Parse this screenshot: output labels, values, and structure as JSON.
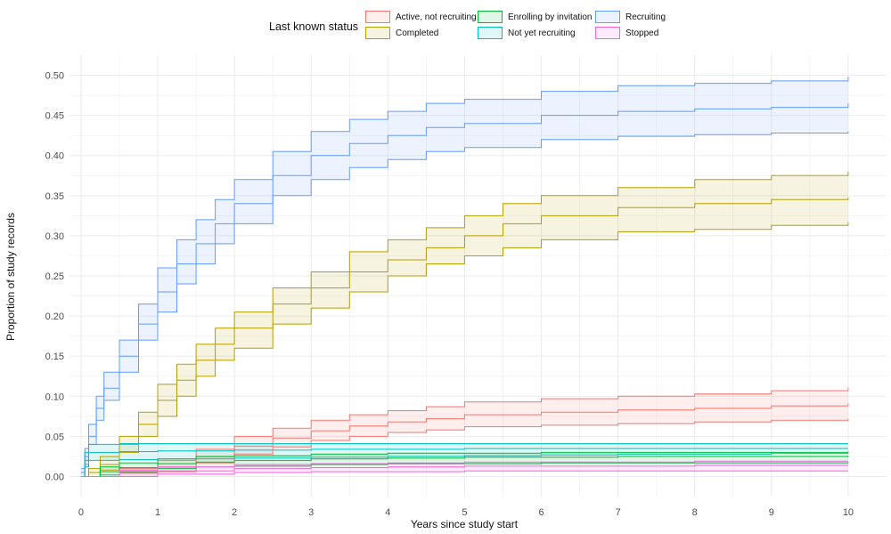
{
  "chart_data": {
    "type": "area",
    "title": "",
    "xlabel": "Years since study start",
    "ylabel": "Proportion of study records",
    "xlim": [
      -0.15,
      10.5
    ],
    "ylim": [
      -0.025,
      0.525
    ],
    "xticks": [
      "0",
      "1",
      "2",
      "3",
      "4",
      "5",
      "6",
      "7",
      "8",
      "9",
      "10"
    ],
    "yticks": [
      "0.00",
      "0.05",
      "0.10",
      "0.15",
      "0.20",
      "0.25",
      "0.30",
      "0.35",
      "0.40",
      "0.45",
      "0.50"
    ],
    "grid": true,
    "legend": {
      "title": "Last known status",
      "position": "top",
      "entries": [
        {
          "label": "Active, not recruiting",
          "color": "#F8766D"
        },
        {
          "label": "Completed",
          "color": "#B79F00"
        },
        {
          "label": "Enrolling by invitation",
          "color": "#00BA38"
        },
        {
          "label": "Not yet recruiting",
          "color": "#00BFC4"
        },
        {
          "label": "Recruiting",
          "color": "#619CFF"
        },
        {
          "label": "Stopped",
          "color": "#F564E3"
        }
      ]
    },
    "series": [
      {
        "name": "Recruiting",
        "color": "#619CFF",
        "x": [
          0,
          0.05,
          0.1,
          0.2,
          0.3,
          0.5,
          0.75,
          1,
          1.25,
          1.5,
          1.75,
          2,
          2.5,
          3,
          3.5,
          4,
          4.5,
          5,
          6,
          7,
          8,
          9,
          10
        ],
        "mid": [
          0.005,
          0.025,
          0.05,
          0.085,
          0.11,
          0.15,
          0.19,
          0.23,
          0.265,
          0.29,
          0.315,
          0.34,
          0.375,
          0.4,
          0.415,
          0.425,
          0.435,
          0.44,
          0.45,
          0.455,
          0.458,
          0.46,
          0.465
        ],
        "lower": [
          0.0,
          0.015,
          0.04,
          0.07,
          0.095,
          0.13,
          0.17,
          0.205,
          0.24,
          0.265,
          0.29,
          0.315,
          0.35,
          0.37,
          0.385,
          0.395,
          0.405,
          0.41,
          0.42,
          0.424,
          0.426,
          0.428,
          0.43
        ],
        "upper": [
          0.01,
          0.035,
          0.065,
          0.1,
          0.13,
          0.17,
          0.215,
          0.26,
          0.295,
          0.32,
          0.345,
          0.37,
          0.405,
          0.43,
          0.445,
          0.455,
          0.465,
          0.47,
          0.48,
          0.487,
          0.49,
          0.493,
          0.498
        ]
      },
      {
        "name": "Completed",
        "color": "#B79F00",
        "x": [
          0,
          0.1,
          0.25,
          0.5,
          0.75,
          1,
          1.25,
          1.5,
          1.75,
          2,
          2.5,
          3,
          3.5,
          4,
          4.5,
          5,
          5.5,
          6,
          7,
          8,
          9,
          10
        ],
        "mid": [
          0.0,
          0.005,
          0.015,
          0.04,
          0.065,
          0.095,
          0.12,
          0.145,
          0.165,
          0.185,
          0.215,
          0.235,
          0.255,
          0.27,
          0.285,
          0.3,
          0.315,
          0.325,
          0.335,
          0.34,
          0.345,
          0.348
        ],
        "lower": [
          0.0,
          0.0,
          0.008,
          0.03,
          0.05,
          0.075,
          0.1,
          0.125,
          0.145,
          0.16,
          0.19,
          0.21,
          0.23,
          0.25,
          0.265,
          0.275,
          0.285,
          0.295,
          0.305,
          0.308,
          0.313,
          0.317
        ],
        "upper": [
          0.0,
          0.01,
          0.025,
          0.05,
          0.08,
          0.115,
          0.14,
          0.165,
          0.185,
          0.205,
          0.235,
          0.255,
          0.28,
          0.295,
          0.31,
          0.325,
          0.34,
          0.35,
          0.36,
          0.37,
          0.375,
          0.38
        ]
      },
      {
        "name": "Active, not recruiting",
        "color": "#F8766D",
        "x": [
          0,
          0.5,
          1,
          1.5,
          2,
          2.5,
          3,
          3.5,
          4,
          4.5,
          5,
          6,
          7,
          8,
          9,
          10
        ],
        "mid": [
          0.0,
          0.005,
          0.012,
          0.025,
          0.038,
          0.048,
          0.057,
          0.063,
          0.068,
          0.072,
          0.077,
          0.08,
          0.083,
          0.085,
          0.088,
          0.091
        ],
        "lower": [
          0.0,
          0.0,
          0.006,
          0.017,
          0.028,
          0.037,
          0.045,
          0.05,
          0.055,
          0.058,
          0.062,
          0.064,
          0.066,
          0.068,
          0.07,
          0.072
        ],
        "upper": [
          0.0,
          0.01,
          0.02,
          0.034,
          0.05,
          0.06,
          0.07,
          0.077,
          0.082,
          0.087,
          0.093,
          0.097,
          0.1,
          0.103,
          0.107,
          0.111
        ]
      },
      {
        "name": "Not yet recruiting",
        "color": "#00BFC4",
        "x": [
          0,
          0.05,
          0.1,
          0.5,
          1,
          2,
          3,
          4,
          5,
          6,
          7,
          8,
          9,
          10
        ],
        "mid": [
          0.0,
          0.02,
          0.03,
          0.031,
          0.032,
          0.033,
          0.034,
          0.034,
          0.035,
          0.035,
          0.035,
          0.035,
          0.035,
          0.035
        ],
        "lower": [
          0.0,
          0.012,
          0.02,
          0.021,
          0.022,
          0.023,
          0.024,
          0.025,
          0.026,
          0.027,
          0.028,
          0.028,
          0.029,
          0.03
        ],
        "upper": [
          0.0,
          0.03,
          0.04,
          0.041,
          0.041,
          0.041,
          0.041,
          0.041,
          0.041,
          0.041,
          0.041,
          0.041,
          0.041,
          0.041
        ]
      },
      {
        "name": "Enrolling by invitation",
        "color": "#00BA38",
        "x": [
          0,
          0.25,
          0.5,
          1,
          1.5,
          2,
          3,
          4,
          5,
          6,
          7,
          8,
          9,
          10
        ],
        "mid": [
          0.0,
          0.006,
          0.011,
          0.016,
          0.018,
          0.02,
          0.022,
          0.023,
          0.024,
          0.024,
          0.025,
          0.025,
          0.025,
          0.026
        ],
        "lower": [
          0.0,
          0.002,
          0.006,
          0.01,
          0.012,
          0.013,
          0.015,
          0.016,
          0.016,
          0.017,
          0.017,
          0.017,
          0.017,
          0.018
        ],
        "upper": [
          0.0,
          0.012,
          0.017,
          0.022,
          0.025,
          0.026,
          0.028,
          0.029,
          0.029,
          0.03,
          0.03,
          0.03,
          0.03,
          0.031
        ]
      },
      {
        "name": "Stopped",
        "color": "#F564E3",
        "x": [
          0,
          0.5,
          1,
          2,
          3,
          4,
          5,
          6,
          7,
          8,
          9,
          10
        ],
        "mid": [
          0.0,
          0.004,
          0.007,
          0.01,
          0.011,
          0.012,
          0.013,
          0.013,
          0.013,
          0.014,
          0.014,
          0.014
        ],
        "lower": [
          0.0,
          0.0,
          0.003,
          0.005,
          0.006,
          0.006,
          0.007,
          0.007,
          0.007,
          0.007,
          0.007,
          0.007
        ],
        "upper": [
          0.0,
          0.008,
          0.012,
          0.015,
          0.016,
          0.017,
          0.018,
          0.018,
          0.018,
          0.019,
          0.019,
          0.019
        ]
      }
    ]
  }
}
